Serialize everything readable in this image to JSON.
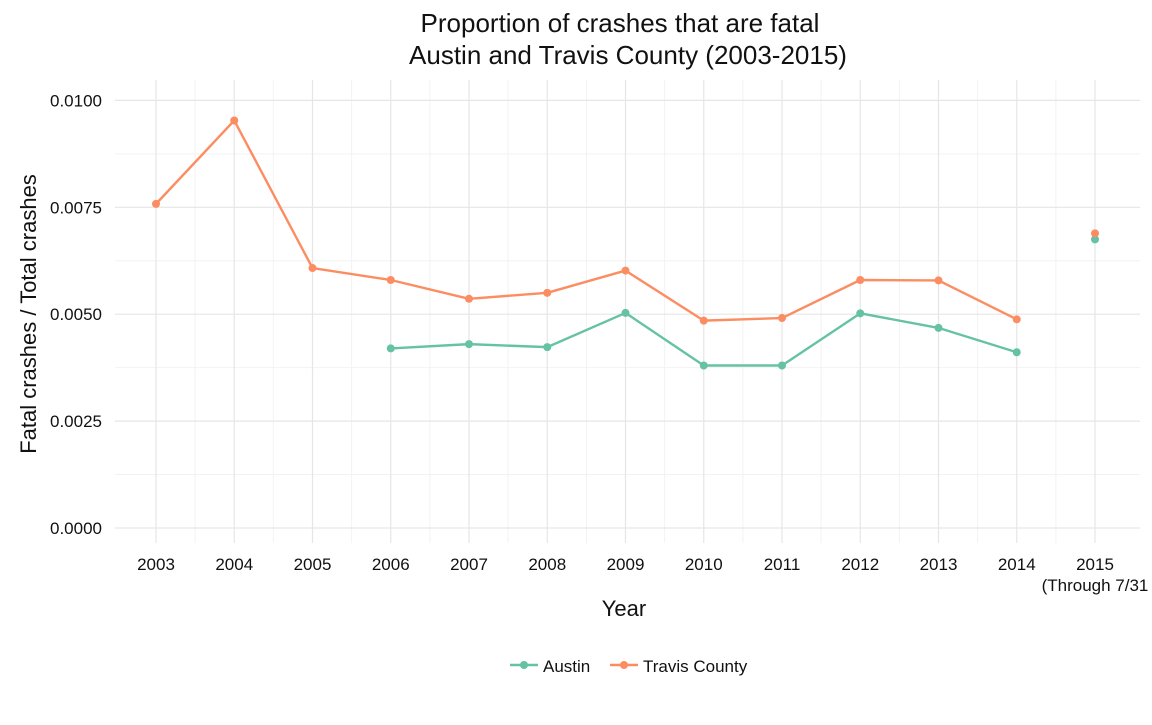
{
  "chart_data": {
    "type": "line",
    "title": "Proportion of crashes that are fatal",
    "subtitle": "Austin and Travis County (2003-2015)",
    "xlabel": "Year",
    "ylabel": "Fatal crashes / Total crashes",
    "categories": [
      "2003",
      "2004",
      "2005",
      "2006",
      "2007",
      "2008",
      "2009",
      "2010",
      "2011",
      "2012",
      "2013",
      "2014",
      "2015"
    ],
    "category_note": {
      "2015": "(Through 7/31"
    },
    "ylim": [
      0,
      0.0105
    ],
    "yticks": [
      0,
      0.0025,
      0.005,
      0.0075,
      0.01
    ],
    "ytick_labels": [
      "0.0000",
      "0.0025",
      "0.0050",
      "0.0075",
      "0.0100"
    ],
    "grid": true,
    "legend_position": "bottom",
    "series": [
      {
        "name": "Austin",
        "color": "#66c2a5",
        "values": [
          null,
          null,
          null,
          0.0042,
          0.0043,
          0.00423,
          0.00503,
          0.0038,
          0.0038,
          0.00502,
          0.00468,
          0.00411,
          0.00675
        ],
        "connected_through": "2014"
      },
      {
        "name": "Travis County",
        "color": "#fc8d62",
        "values": [
          0.00758,
          0.00953,
          0.00608,
          0.0058,
          0.00536,
          0.0055,
          0.00602,
          0.00485,
          0.00491,
          0.0058,
          0.00579,
          0.00488,
          0.00689
        ],
        "connected_through": "2014"
      }
    ]
  }
}
